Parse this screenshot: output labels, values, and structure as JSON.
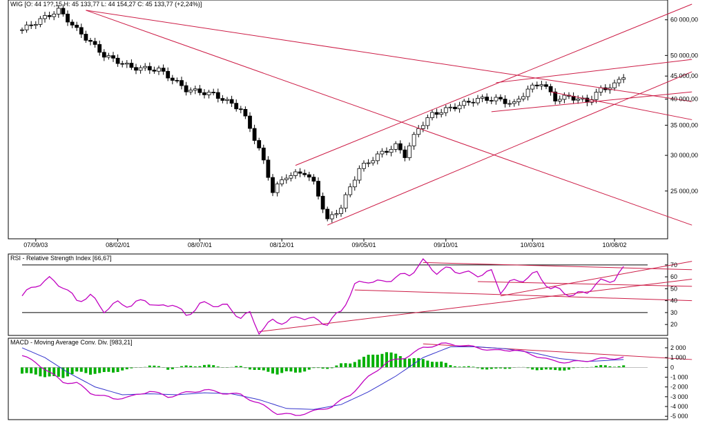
{
  "colors": {
    "background": "#ffffff",
    "axis": "#000000",
    "trendline": "#cc1a44",
    "rsi_line": "#c000c0",
    "macd_line": "#c000c0",
    "signal_line": "#3333cc",
    "histogram": "#00b000",
    "candle_up": "#ffffff",
    "candle_down": "#000000",
    "rsi_band": "#000000",
    "rsi_highlight": "#00cccc"
  },
  "main": {
    "header": "WIG [O: 44 1??,15  H: 45 133,77  L: 44 154,27  C: 45 133,77 (+2,24%)]",
    "y_ticks": [
      {
        "value": 25000,
        "label": "25 000,00"
      },
      {
        "value": 30000,
        "label": "30 000,00"
      },
      {
        "value": 35000,
        "label": "35 000,00"
      },
      {
        "value": 40000,
        "label": "40 000,00"
      },
      {
        "value": 45000,
        "label": "45 000,00"
      },
      {
        "value": 50000,
        "label": "50 000,00"
      },
      {
        "value": 60000,
        "label": "60 000,00"
      }
    ],
    "x_ticks": [
      "07/09/03",
      "08/02/01",
      "08/07/01",
      "08/12/01",
      "09/05/01",
      "09/10/01",
      "10/03/01",
      "10/08/02"
    ]
  },
  "rsi": {
    "header": "RSI - Relative Strength Index [66,67]",
    "y_ticks": [
      {
        "value": 20,
        "label": "20"
      },
      {
        "value": 30,
        "label": "30"
      },
      {
        "value": 40,
        "label": "40"
      },
      {
        "value": 50,
        "label": "50"
      },
      {
        "value": 60,
        "label": "60"
      },
      {
        "value": 70,
        "label": "70"
      }
    ]
  },
  "macd": {
    "header": "MACD - Moving Average Conv. Div. [983,21]",
    "y_ticks": [
      {
        "value": 2000,
        "label": "2 000"
      },
      {
        "value": 1000,
        "label": "1 000"
      },
      {
        "value": 0,
        "label": "0"
      },
      {
        "value": -1000,
        "label": "-1 000"
      },
      {
        "value": -2000,
        "label": "-2 000"
      },
      {
        "value": -3000,
        "label": "-3 000"
      },
      {
        "value": -4000,
        "label": "-4 000"
      },
      {
        "value": -5000,
        "label": "-5 000"
      }
    ]
  },
  "chart_data": [
    {
      "type": "candlestick",
      "series": "WIG",
      "y_scale": "log",
      "ylim": [
        20000,
        65000
      ],
      "close_anchors": [
        [
          0,
          57000
        ],
        [
          8,
          63000
        ],
        [
          12,
          57000
        ],
        [
          18,
          50000
        ],
        [
          24,
          47000
        ],
        [
          30,
          46500
        ],
        [
          36,
          42000
        ],
        [
          42,
          41000
        ],
        [
          48,
          38000
        ],
        [
          52,
          31000
        ],
        [
          55,
          25000
        ],
        [
          58,
          27000
        ],
        [
          62,
          27500
        ],
        [
          64,
          26000
        ],
        [
          67,
          21500
        ],
        [
          70,
          23000
        ],
        [
          74,
          28000
        ],
        [
          78,
          30000
        ],
        [
          82,
          31500
        ],
        [
          84,
          30000
        ],
        [
          87,
          34500
        ],
        [
          90,
          37000
        ],
        [
          95,
          38500
        ],
        [
          100,
          40000
        ],
        [
          104,
          40000
        ],
        [
          108,
          39000
        ],
        [
          111,
          42000
        ],
        [
          114,
          43500
        ],
        [
          117,
          40000
        ],
        [
          120,
          40500
        ],
        [
          124,
          39500
        ],
        [
          127,
          42000
        ],
        [
          130,
          43000
        ],
        [
          132,
          45133
        ]
      ],
      "trendlines": [
        {
          "from": [
            14,
            63000
          ],
          "to": [
            147,
            21000
          ]
        },
        {
          "from": [
            14,
            63000
          ],
          "to": [
            147,
            39500
          ]
        },
        {
          "from": [
            60,
            28500
          ],
          "to": [
            147,
            65000
          ]
        },
        {
          "from": [
            67,
            21000
          ],
          "to": [
            147,
            46000
          ]
        },
        {
          "from": [
            104,
            43500
          ],
          "to": [
            147,
            49000
          ]
        },
        {
          "from": [
            103,
            37500
          ],
          "to": [
            147,
            41500
          ]
        },
        {
          "from": [
            116,
            41500
          ],
          "to": [
            147,
            36000
          ]
        }
      ]
    },
    {
      "type": "line",
      "series": "RSI",
      "ylim": [
        12,
        78
      ],
      "points": [
        [
          0,
          44
        ],
        [
          3,
          53
        ],
        [
          6,
          58
        ],
        [
          9,
          52
        ],
        [
          12,
          40
        ],
        [
          15,
          44
        ],
        [
          18,
          32
        ],
        [
          21,
          38
        ],
        [
          24,
          36
        ],
        [
          27,
          41
        ],
        [
          30,
          34
        ],
        [
          33,
          38
        ],
        [
          36,
          27
        ],
        [
          39,
          37
        ],
        [
          42,
          37
        ],
        [
          45,
          35
        ],
        [
          48,
          26
        ],
        [
          50,
          29
        ],
        [
          52,
          14
        ],
        [
          55,
          23
        ],
        [
          58,
          22
        ],
        [
          61,
          27
        ],
        [
          64,
          24
        ],
        [
          67,
          21
        ],
        [
          70,
          31
        ],
        [
          73,
          53
        ],
        [
          76,
          57
        ],
        [
          79,
          55
        ],
        [
          82,
          60
        ],
        [
          85,
          62
        ],
        [
          88,
          73
        ],
        [
          91,
          64
        ],
        [
          94,
          67
        ],
        [
          97,
          63
        ],
        [
          100,
          62
        ],
        [
          103,
          64
        ],
        [
          105,
          48
        ],
        [
          107,
          55
        ],
        [
          110,
          58
        ],
        [
          113,
          63
        ],
        [
          116,
          50
        ],
        [
          118,
          49
        ],
        [
          121,
          44
        ],
        [
          124,
          48
        ],
        [
          127,
          56
        ],
        [
          130,
          58
        ],
        [
          132,
          66.67
        ]
      ],
      "reference_lines": [
        70,
        30
      ],
      "trendlines": [
        {
          "from": [
            52,
            14
          ],
          "to": [
            147,
            58
          ]
        },
        {
          "from": [
            88,
            72
          ],
          "to": [
            147,
            66
          ]
        },
        {
          "from": [
            73,
            49
          ],
          "to": [
            147,
            40
          ]
        },
        {
          "from": [
            105,
            44
          ],
          "to": [
            147,
            73
          ]
        },
        {
          "from": [
            100,
            56
          ],
          "to": [
            147,
            52
          ]
        }
      ]
    },
    {
      "type": "macd",
      "series": [
        "MACD",
        "Signal",
        "Histogram"
      ],
      "ylim": [
        -5200,
        2700
      ],
      "macd_points": [
        [
          0,
          1200
        ],
        [
          3,
          500
        ],
        [
          6,
          -500
        ],
        [
          9,
          -1500
        ],
        [
          12,
          -1600
        ],
        [
          15,
          -2600
        ],
        [
          20,
          -3200
        ],
        [
          24,
          -3000
        ],
        [
          28,
          -2400
        ],
        [
          32,
          -3000
        ],
        [
          36,
          -2600
        ],
        [
          40,
          -2300
        ],
        [
          44,
          -2600
        ],
        [
          48,
          -2800
        ],
        [
          52,
          -3700
        ],
        [
          56,
          -4700
        ],
        [
          60,
          -4900
        ],
        [
          64,
          -4500
        ],
        [
          68,
          -4000
        ],
        [
          72,
          -2800
        ],
        [
          76,
          -1000
        ],
        [
          80,
          500
        ],
        [
          84,
          1000
        ],
        [
          88,
          2000
        ],
        [
          92,
          2400
        ],
        [
          96,
          2300
        ],
        [
          100,
          2000
        ],
        [
          104,
          1700
        ],
        [
          108,
          1800
        ],
        [
          112,
          1300
        ],
        [
          116,
          700
        ],
        [
          120,
          500
        ],
        [
          124,
          700
        ],
        [
          128,
          900
        ],
        [
          132,
          983.21
        ]
      ],
      "signal_points": [
        [
          0,
          2000
        ],
        [
          5,
          1000
        ],
        [
          10,
          -500
        ],
        [
          16,
          -2000
        ],
        [
          22,
          -2800
        ],
        [
          28,
          -2700
        ],
        [
          34,
          -2800
        ],
        [
          40,
          -2600
        ],
        [
          46,
          -2700
        ],
        [
          52,
          -3300
        ],
        [
          58,
          -4200
        ],
        [
          64,
          -4300
        ],
        [
          70,
          -3800
        ],
        [
          76,
          -2500
        ],
        [
          82,
          -900
        ],
        [
          88,
          1000
        ],
        [
          94,
          2100
        ],
        [
          100,
          2100
        ],
        [
          106,
          1900
        ],
        [
          112,
          1500
        ],
        [
          118,
          900
        ],
        [
          124,
          600
        ],
        [
          128,
          700
        ],
        [
          132,
          800
        ]
      ],
      "trendlines": [
        {
          "from": [
            88,
            2400
          ],
          "to": [
            147,
            800
          ]
        }
      ]
    }
  ]
}
